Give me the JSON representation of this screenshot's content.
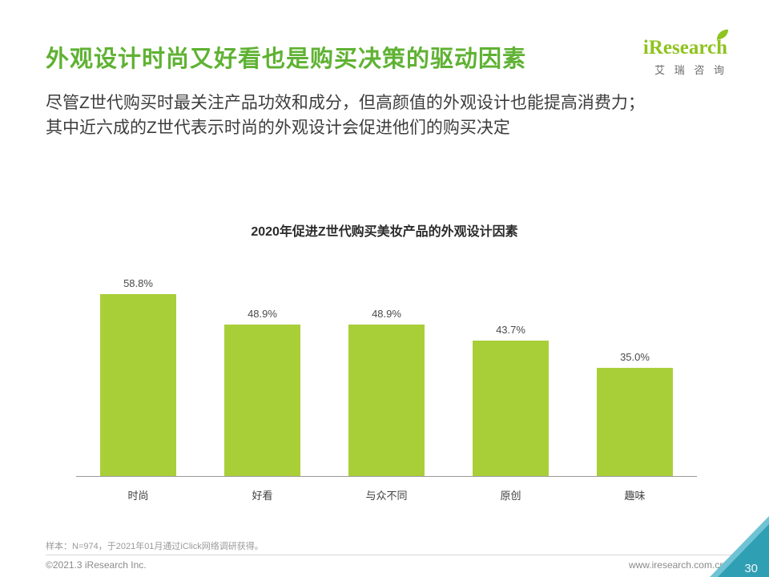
{
  "page": {
    "title": "外观设计时尚又好看也是购买决策的驱动因素",
    "subtitle_line1": "尽管Z世代购买时最关注产品功效和成分，但高颜值的外观设计也能提高消费力；",
    "subtitle_line2": "其中近六成的Z世代表示时尚的外观设计会促进他们的购买决定",
    "page_number": "30"
  },
  "logo": {
    "brand": "iResearch",
    "brand_cn": "艾 瑞 咨 询"
  },
  "chart_data": {
    "type": "bar",
    "title": "2020年促进Z世代购买美妆产品的外观设计因素",
    "categories": [
      "时尚",
      "好看",
      "与众不同",
      "原创",
      "趣味"
    ],
    "values": [
      58.8,
      48.9,
      48.9,
      43.7,
      35.0
    ],
    "value_labels": [
      "58.8%",
      "48.9%",
      "48.9%",
      "43.7%",
      "35.0%"
    ],
    "xlabel": "",
    "ylabel": "",
    "ylim": [
      0,
      65
    ],
    "grid": false,
    "legend": "none",
    "bar_color": "#a9cf38"
  },
  "footnote": "样本：N=974，于2021年01月通过iClick网络调研获得。",
  "footer": {
    "copyright": "©2021.3 iResearch Inc.",
    "website": "www.iresearch.com.cn"
  },
  "colors": {
    "title_green": "#5fb233",
    "logo_green": "#8fc31f",
    "bar_green": "#a9cf38",
    "corner_teal": "#2f9fb3",
    "corner_light_blue": "#6fc3d4"
  }
}
